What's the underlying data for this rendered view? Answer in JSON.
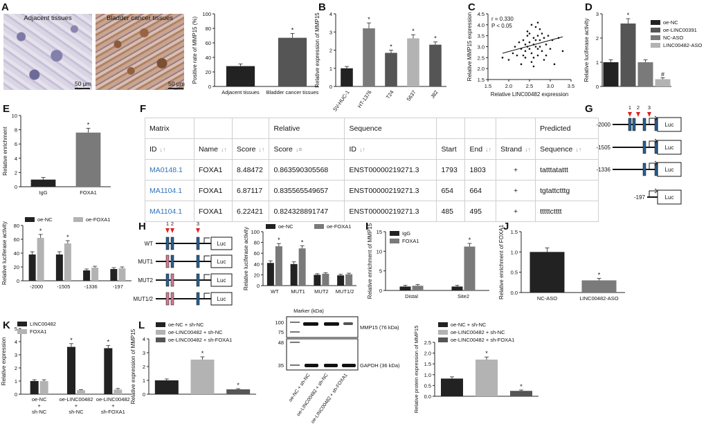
{
  "panel_labels": [
    "A",
    "B",
    "C",
    "D",
    "E",
    "F",
    "G",
    "H",
    "I",
    "J",
    "K",
    "L"
  ],
  "panel_a": {
    "image_titles": [
      "Adjacent tissues",
      "Bladder cancer tissues"
    ],
    "scale_bar": "50 μm"
  },
  "panel_f": {
    "header1": [
      "Matrix",
      "",
      "",
      "Relative",
      "Sequence",
      "",
      "",
      "",
      "Predicted"
    ],
    "header2": [
      "ID",
      "Name",
      "Score",
      "Score",
      "ID",
      "Start",
      "End",
      "Strand",
      "Sequence"
    ],
    "rows": [
      [
        "MA0148.1",
        "FOXA1",
        "8.48472",
        "0.863590305568",
        "ENST00000219271.3",
        "1793",
        "1803",
        "+",
        "tatttatattt"
      ],
      [
        "MA1104.1",
        "FOXA1",
        "6.87117",
        "0.835565549657",
        "ENST00000219271.3",
        "654",
        "664",
        "+",
        "tgtattctttg"
      ],
      [
        "MA1104.1",
        "FOXA1",
        "6.22421",
        "0.824328891747",
        "ENST00000219271.3",
        "485",
        "495",
        "+",
        "tttttctttt"
      ]
    ]
  },
  "panel_g": {
    "site_labels": [
      "1",
      "2",
      "3"
    ],
    "constructs": [
      "-2000",
      "-1505",
      "-1336",
      "-197"
    ],
    "reporter": "Luc"
  },
  "panel_h": {
    "site_labels": [
      "1",
      "2",
      "3"
    ],
    "constructs": [
      "WT",
      "MUT1",
      "MUT2",
      "MUT1/2"
    ],
    "reporter": "Luc"
  },
  "panel_l_blot": {
    "marker_label": "Marker (kDa)",
    "markers": [
      "100",
      "75",
      "48",
      "35"
    ],
    "bands": [
      "MMP15 (76 kDa)",
      "GAPDH (36 kDa)"
    ],
    "lanes": [
      "oe-NC + sh-NC",
      "oe-LINC00482 + sh-NC",
      "oe-LINC00482 + sh-FOXA1"
    ]
  },
  "colors": {
    "black": "#222222",
    "dark_gray": "#555555",
    "mid_gray": "#7a7a7a",
    "light_gray": "#b3b3b3",
    "link": "#2f72b9",
    "element_blue": "#2a5f8c"
  },
  "chart_data": [
    {
      "id": "A",
      "type": "bar",
      "categories": [
        "Adjacent tissues",
        "Bladder cancer tissues"
      ],
      "values": [
        28,
        67
      ],
      "errors": [
        3,
        6
      ],
      "ylabel": "Positive rate of MMP15 (%)",
      "ylim": [
        0,
        100
      ],
      "yticks": [
        "0",
        "20",
        "40",
        "60",
        "80",
        "100"
      ],
      "stars": [
        "",
        "*"
      ]
    },
    {
      "id": "B",
      "type": "bar",
      "categories": [
        "SV-HUC-1",
        "HT-1376",
        "T24",
        "5637",
        "J82"
      ],
      "values": [
        1.0,
        3.2,
        1.85,
        2.65,
        2.3
      ],
      "errors": [
        0.1,
        0.3,
        0.15,
        0.2,
        0.15
      ],
      "ylabel": "Relative expression of MMP15",
      "ylim": [
        0,
        4
      ],
      "yticks": [
        "0",
        "1",
        "2",
        "3",
        "4"
      ],
      "stars": [
        "",
        "*",
        "*",
        "*",
        "*"
      ]
    },
    {
      "id": "C",
      "type": "scatter",
      "xlabel": "Relative LINC00482 expression",
      "ylabel": "Relative MMP15 expression",
      "xlim": [
        1.5,
        3.5
      ],
      "ylim": [
        1.5,
        4.5
      ],
      "xticks": [
        "1.5",
        "2.0",
        "2.5",
        "3.0",
        "3.5"
      ],
      "yticks": [
        "1.5",
        "2.0",
        "2.5",
        "3.0",
        "3.5",
        "4.0",
        "4.5"
      ],
      "stats": [
        "r = 0.330",
        "P < 0.05"
      ],
      "fit": [
        [
          1.85,
          2.7
        ],
        [
          3.3,
          3.45
        ]
      ],
      "x": [
        1.85,
        2.0,
        2.1,
        2.15,
        2.2,
        2.25,
        2.3,
        2.3,
        2.35,
        2.4,
        2.4,
        2.45,
        2.45,
        2.5,
        2.5,
        2.5,
        2.55,
        2.55,
        2.6,
        2.6,
        2.6,
        2.65,
        2.65,
        2.7,
        2.7,
        2.7,
        2.75,
        2.75,
        2.8,
        2.8,
        2.85,
        2.9,
        2.9,
        3.0,
        3.05,
        3.1,
        3.2,
        3.3,
        2.35,
        2.55,
        2.65,
        2.75,
        2.85,
        2.45,
        2.95,
        2.6,
        2.4,
        2.7
      ],
      "y": [
        2.5,
        2.4,
        2.7,
        3.0,
        2.6,
        3.2,
        2.9,
        2.2,
        3.3,
        2.8,
        2.5,
        3.5,
        3.0,
        2.9,
        3.2,
        3.6,
        2.7,
        4.0,
        3.1,
        3.4,
        2.5,
        3.9,
        3.3,
        2.9,
        3.5,
        4.1,
        3.0,
        3.3,
        2.8,
        3.6,
        3.4,
        3.1,
        2.6,
        2.9,
        3.3,
        2.2,
        3.4,
        2.8,
        2.6,
        2.3,
        3.0,
        3.8,
        2.4,
        3.7,
        3.5,
        2.1,
        3.1,
        2.6
      ]
    },
    {
      "id": "D",
      "type": "bar",
      "categories": [
        "oe-NC",
        "oe-LINC00391",
        "NC-ASO",
        "LINC00482-ASO"
      ],
      "legend": [
        "oe-NC",
        "oe-LINC00391",
        "NC-ASO",
        "LINC00482-ASO"
      ],
      "values": [
        1.0,
        2.6,
        1.0,
        0.3
      ],
      "errors": [
        0.1,
        0.2,
        0.1,
        0.06
      ],
      "ylabel": "Relative luciferase activity",
      "ylim": [
        0,
        3
      ],
      "yticks": [
        "0",
        "1",
        "2",
        "3"
      ],
      "stars": [
        "",
        "*",
        "",
        "#"
      ]
    },
    {
      "id": "E",
      "type": "bar",
      "categories": [
        "IgG",
        "FOXA1"
      ],
      "values": [
        1.0,
        7.6
      ],
      "errors": [
        0.3,
        0.6
      ],
      "ylabel": "Relative enrichment",
      "ylim": [
        0,
        10
      ],
      "yticks": [
        "0",
        "2",
        "4",
        "6",
        "8",
        "10"
      ],
      "stars": [
        "",
        "*"
      ]
    },
    {
      "id": "G2",
      "type": "bar",
      "categories": [
        "-2000",
        "-1505",
        "-1336",
        "-197"
      ],
      "series": [
        {
          "name": "oe-NC",
          "values": [
            38,
            38,
            15,
            17
          ]
        },
        {
          "name": "oe-FOXA1",
          "values": [
            62,
            54,
            19,
            18
          ]
        }
      ],
      "errors": [
        [
          4,
          4,
          2,
          2
        ],
        [
          5,
          4,
          2,
          2
        ]
      ],
      "ylabel": "Relative luciferase activity",
      "ylim": [
        0,
        80
      ],
      "yticks": [
        "0",
        "20",
        "40",
        "60",
        "80"
      ],
      "stars": [
        [
          "",
          "",
          "",
          ""
        ],
        [
          "*",
          "*",
          "",
          ""
        ]
      ]
    },
    {
      "id": "H",
      "type": "bar",
      "categories": [
        "WT",
        "MUT1",
        "MUT2",
        "MUT1/2"
      ],
      "series": [
        {
          "name": "oe-NC",
          "values": [
            42,
            40,
            20,
            19
          ]
        },
        {
          "name": "oe-FOXA1",
          "values": [
            73,
            69,
            22,
            21
          ]
        }
      ],
      "errors": [
        [
          4,
          4,
          2,
          2
        ],
        [
          5,
          5,
          2,
          2
        ]
      ],
      "ylabel": "Relative luciferase activity",
      "ylim": [
        0,
        100
      ],
      "yticks": [
        "0",
        "20",
        "40",
        "60",
        "80",
        "100"
      ],
      "stars": [
        [
          "",
          "",
          "",
          ""
        ],
        [
          "*",
          "*",
          "",
          ""
        ]
      ]
    },
    {
      "id": "I",
      "type": "bar",
      "categories": [
        "Distal",
        "Site2"
      ],
      "series": [
        {
          "name": "IgG",
          "values": [
            1.0,
            1.0
          ]
        },
        {
          "name": "FOXA1",
          "values": [
            1.2,
            11.2
          ]
        }
      ],
      "errors": [
        [
          0.3,
          0.3
        ],
        [
          0.3,
          0.8
        ]
      ],
      "ylabel": "Relative enrichment of MMP15",
      "ylim": [
        0,
        15
      ],
      "yticks": [
        "0",
        "5",
        "10",
        "15"
      ],
      "stars": [
        [
          "",
          ""
        ],
        [
          "",
          "*"
        ]
      ]
    },
    {
      "id": "J",
      "type": "bar",
      "categories": [
        "NC-ASO",
        "LINC00482-ASO"
      ],
      "values": [
        1.0,
        0.3
      ],
      "errors": [
        0.1,
        0.05
      ],
      "ylabel": "Relative enrichment of FOXA1",
      "ylim": [
        0,
        1.5
      ],
      "yticks": [
        "0.0",
        "0.5",
        "1.0",
        "1.5"
      ],
      "stars": [
        "",
        "*"
      ]
    },
    {
      "id": "K",
      "type": "bar",
      "categories": [
        "oe-NC + sh-NC",
        "oe-LINC00482 + sh-NC",
        "oe-LINC00482 + sh-FOXA1"
      ],
      "series": [
        {
          "name": "LINC00482",
          "values": [
            1.0,
            3.6,
            3.5
          ]
        },
        {
          "name": "FOXA1",
          "values": [
            1.0,
            0.3,
            0.35
          ]
        }
      ],
      "errors": [
        [
          0.1,
          0.25,
          0.2
        ],
        [
          0.1,
          0.05,
          0.08
        ]
      ],
      "ylabel": "Relative expression",
      "ylim": [
        0,
        5
      ],
      "yticks": [
        "0",
        "1",
        "2",
        "3",
        "4",
        "5"
      ],
      "stars": [
        [
          "",
          "*",
          "*"
        ],
        [
          "",
          "",
          ""
        ]
      ]
    },
    {
      "id": "L1",
      "type": "bar",
      "categories": [
        "oe-NC + sh-NC",
        "oe-LINC00482 + sh-NC",
        "oe-LINC00482 + sh-FOXA1"
      ],
      "legend": [
        "oe-NC + sh-NC",
        "oe-LINC00482 + sh-NC",
        "oe-LINC00482 + sh-FOXA1"
      ],
      "values": [
        1.0,
        2.5,
        0.35
      ],
      "errors": [
        0.1,
        0.2,
        0.05
      ],
      "ylabel": "Relative expression of MMP15",
      "ylim": [
        0,
        4
      ],
      "yticks": [
        "0",
        "1",
        "2",
        "3",
        "4"
      ],
      "stars": [
        "",
        "*",
        "*"
      ]
    },
    {
      "id": "L2",
      "type": "bar",
      "categories": [
        "oe-NC + sh-NC",
        "oe-LINC00482 + sh-NC",
        "oe-LINC00482 + sh-FOXA1"
      ],
      "legend": [
        "oe-NC + sh-NC",
        "oe-LINC00482 + sh-NC",
        "oe-LINC00482 + sh-FOXA1"
      ],
      "values": [
        0.82,
        1.7,
        0.25
      ],
      "errors": [
        0.08,
        0.12,
        0.04
      ],
      "ylabel": "Relative protein expression of MMP15",
      "ylim": [
        0,
        2.5
      ],
      "yticks": [
        "0.0",
        "0.5",
        "1.0",
        "1.5",
        "2.0",
        "2.5"
      ],
      "stars": [
        "",
        "*",
        "*"
      ]
    }
  ]
}
